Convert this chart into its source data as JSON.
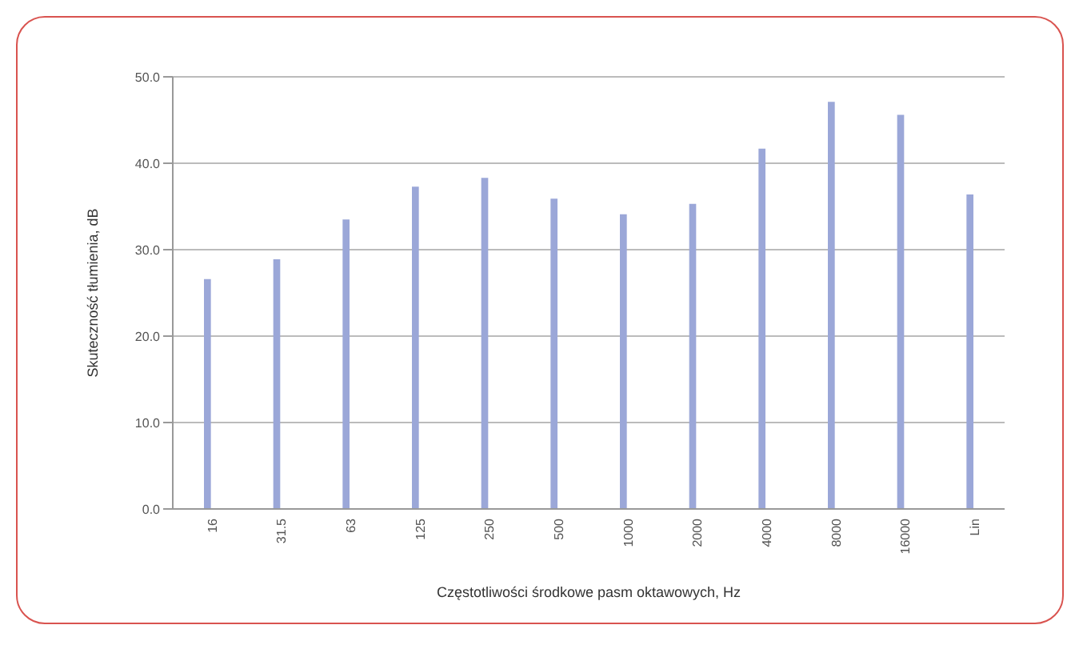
{
  "chart_data": {
    "type": "bar",
    "xlabel": "Częstotliwości środkowe pasm oktawowych, Hz",
    "ylabel": "Skuteczność tłumienia, dB",
    "categories": [
      "16",
      "31.5",
      "63",
      "125",
      "250",
      "500",
      "1000",
      "2000",
      "4000",
      "8000",
      "16000",
      "Lin"
    ],
    "values": [
      26.6,
      28.9,
      33.5,
      37.3,
      38.3,
      35.9,
      34.1,
      35.3,
      41.7,
      47.1,
      45.6,
      36.4
    ],
    "color": "#9ba7d8",
    "ylim": [
      0,
      50
    ],
    "yticks": [
      {
        "value": 0,
        "label": "0.0"
      },
      {
        "value": 10,
        "label": "10.0"
      },
      {
        "value": 20,
        "label": "20.0"
      },
      {
        "value": 30,
        "label": "30.0"
      },
      {
        "value": 40,
        "label": "40.0"
      },
      {
        "value": 50,
        "label": "50.0"
      }
    ],
    "grid": "y",
    "legend": false
  }
}
